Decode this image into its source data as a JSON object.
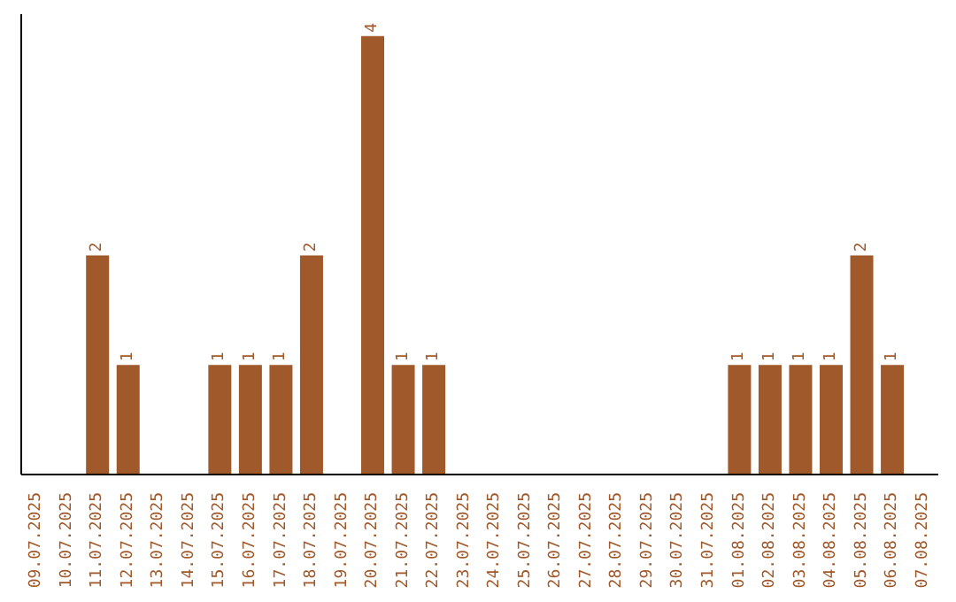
{
  "chart_data": {
    "type": "bar",
    "categories": [
      "09.07.2025",
      "10.07.2025",
      "11.07.2025",
      "12.07.2025",
      "13.07.2025",
      "14.07.2025",
      "15.07.2025",
      "16.07.2025",
      "17.07.2025",
      "18.07.2025",
      "19.07.2025",
      "20.07.2025",
      "21.07.2025",
      "22.07.2025",
      "23.07.2025",
      "24.07.2025",
      "25.07.2025",
      "26.07.2025",
      "27.07.2025",
      "28.07.2025",
      "29.07.2025",
      "30.07.2025",
      "31.07.2025",
      "01.08.2025",
      "02.08.2025",
      "03.08.2025",
      "04.08.2025",
      "05.08.2025",
      "06.08.2025",
      "07.08.2025"
    ],
    "values": [
      0,
      0,
      2,
      1,
      0,
      0,
      1,
      1,
      1,
      2,
      0,
      4,
      1,
      1,
      0,
      0,
      0,
      0,
      0,
      0,
      0,
      0,
      0,
      1,
      1,
      1,
      1,
      2,
      1,
      0
    ],
    "value_labels": [
      null,
      null,
      "2",
      "1",
      null,
      null,
      "1",
      "1",
      "1",
      "2",
      null,
      "4",
      "1",
      "1",
      null,
      null,
      null,
      null,
      null,
      null,
      null,
      null,
      null,
      "1",
      "1",
      "1",
      "1",
      "2",
      "1",
      null
    ],
    "color": "#a0592b",
    "grid": false,
    "tick_labels": "x"
  }
}
